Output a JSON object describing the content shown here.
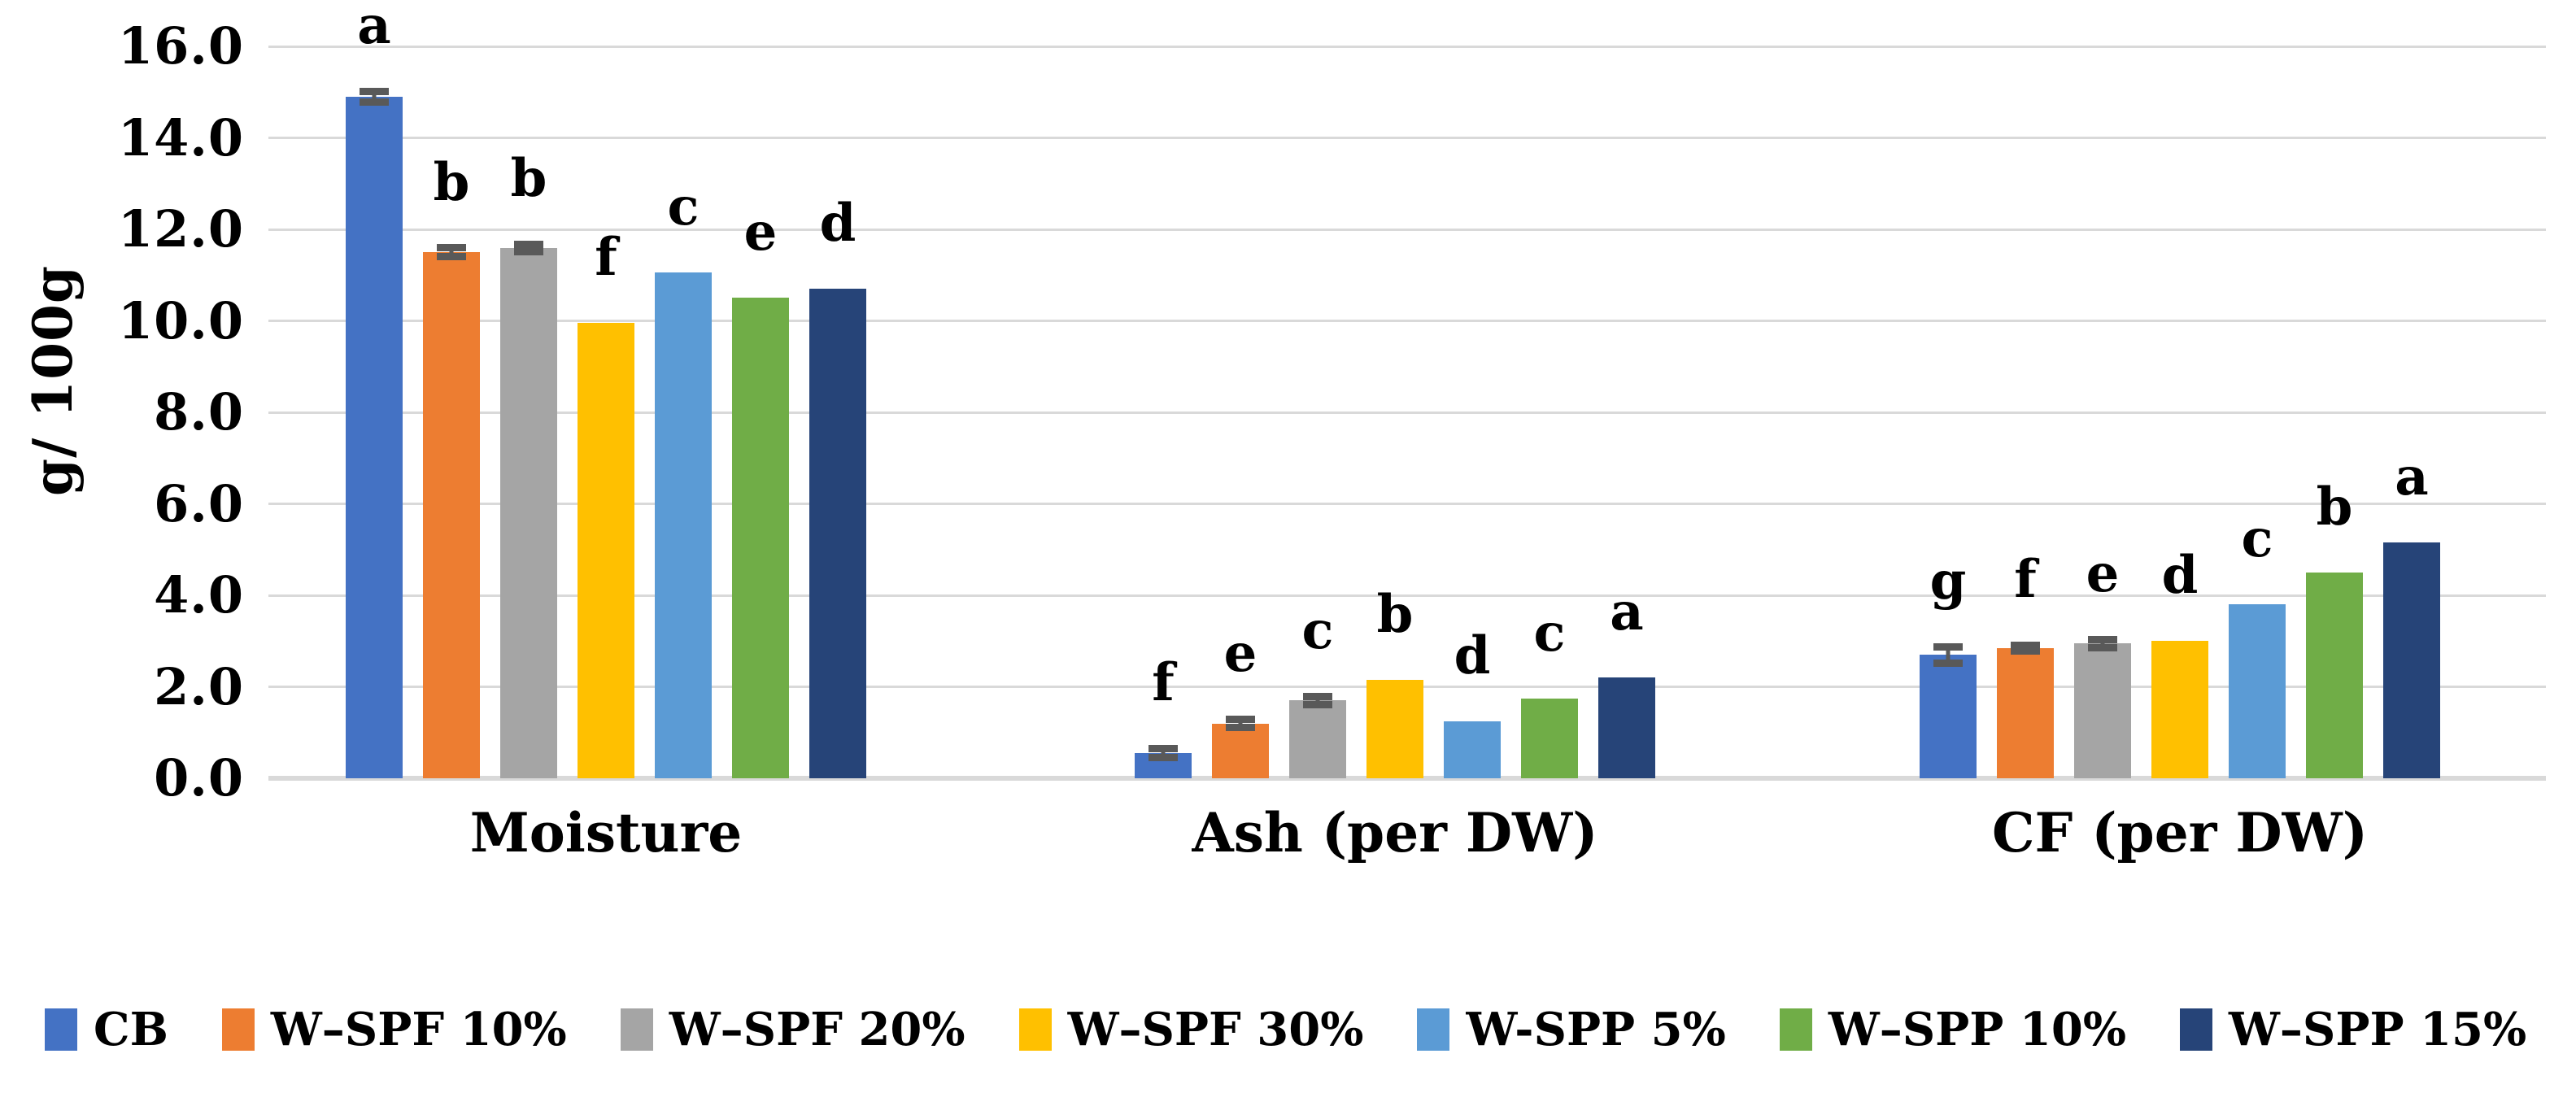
{
  "chart_data": {
    "type": "bar",
    "title": "",
    "ylabel": "g/ 100g",
    "ylim": [
      0,
      16
    ],
    "ytick_step": 2,
    "yticks": [
      0,
      2,
      4,
      6,
      8,
      10,
      12,
      14,
      16
    ],
    "ytick_labels": [
      "0.0",
      "2.0",
      "4.0",
      "6.0",
      "8.0",
      "10.0",
      "12.0",
      "14.0",
      "16.0"
    ],
    "categories": [
      "Moisture",
      "Ash (per DW)",
      "CF (per DW)"
    ],
    "grid": true,
    "legend_position": "bottom",
    "series": [
      {
        "name": "CB",
        "color": "#4472C4",
        "values": [
          14.9,
          0.55,
          2.7
        ],
        "letters": [
          "a",
          "f",
          "g"
        ],
        "errors": [
          0.12,
          0.1,
          0.18
        ]
      },
      {
        "name": "W–SPF 10%",
        "color": "#ED7D31",
        "values": [
          11.5,
          1.2,
          2.85
        ],
        "letters": [
          "b",
          "e",
          "f"
        ],
        "errors": [
          0.1,
          0.09,
          0.06
        ]
      },
      {
        "name": "W–SPF 20%",
        "color": "#A5A5A5",
        "values": [
          11.6,
          1.7,
          2.95
        ],
        "letters": [
          "b",
          "c",
          "e"
        ],
        "errors": [
          0.08,
          0.09,
          0.09
        ]
      },
      {
        "name": "W–SPF 30%",
        "color": "#FFC000",
        "values": [
          9.95,
          2.15,
          3.0
        ],
        "letters": [
          "f",
          "b",
          "d"
        ],
        "errors": [
          0,
          0,
          0
        ]
      },
      {
        "name": "W-SPP 5%",
        "color": "#5B9BD5",
        "values": [
          11.05,
          1.25,
          3.8
        ],
        "letters": [
          "c",
          "d",
          "c"
        ],
        "errors": [
          0,
          0,
          0
        ]
      },
      {
        "name": "W–SPP 10%",
        "color": "#70AD47",
        "values": [
          10.5,
          1.75,
          4.5
        ],
        "letters": [
          "e",
          "c",
          "b"
        ],
        "errors": [
          0,
          0,
          0
        ]
      },
      {
        "name": "W–SPP 15%",
        "color": "#264478",
        "values": [
          10.7,
          2.2,
          5.15
        ],
        "letters": [
          "d",
          "a",
          "a"
        ],
        "errors": [
          0,
          0,
          0
        ]
      }
    ],
    "colors": {
      "gridline": "#D9D9D9",
      "axis_line": "#D9D9D9",
      "error_bar": "#595959",
      "text": "#000000",
      "background": "#FFFFFF"
    }
  }
}
